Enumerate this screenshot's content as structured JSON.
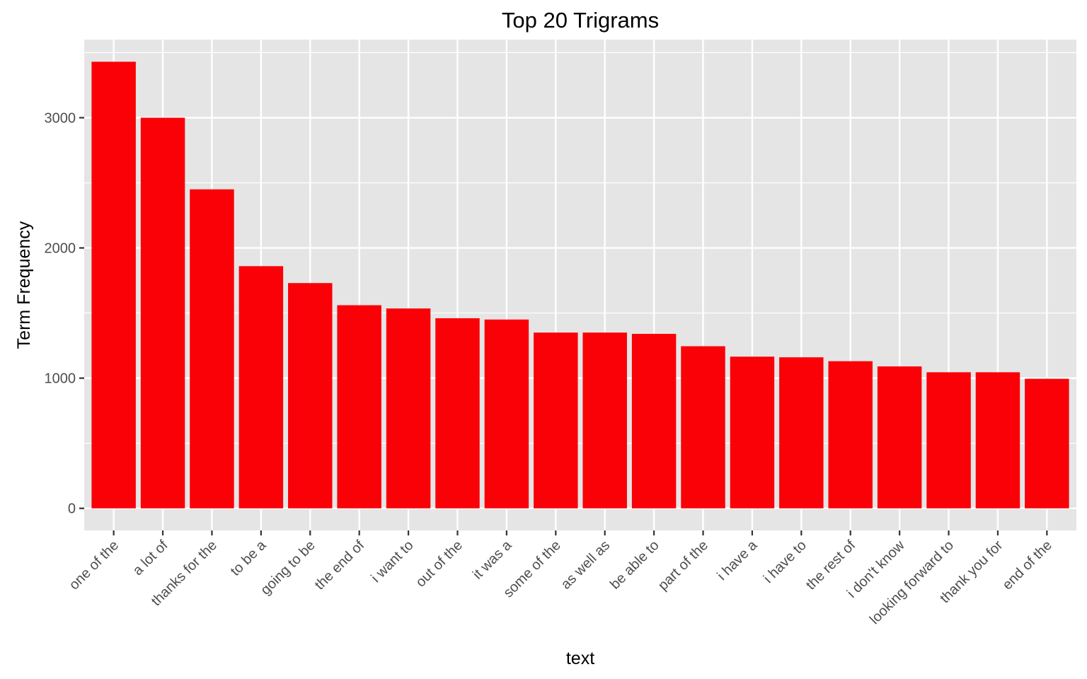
{
  "chart_data": {
    "type": "bar",
    "title": "Top 20 Trigrams",
    "xlabel": "text",
    "ylabel": "Term Frequency",
    "categories": [
      "one of the",
      "a lot of",
      "thanks for the",
      "to be a",
      "going to be",
      "the end of",
      "i want to",
      "out of the",
      "it was a",
      "some of the",
      "as well as",
      "be able to",
      "part of the",
      "i have a",
      "i have to",
      "the rest of",
      "i don't know",
      "looking forward to",
      "thank you for",
      "end of the"
    ],
    "values": [
      3430,
      3000,
      2450,
      1860,
      1730,
      1560,
      1535,
      1460,
      1450,
      1350,
      1350,
      1340,
      1245,
      1165,
      1160,
      1130,
      1090,
      1045,
      1045,
      995
    ],
    "yticks": [
      0,
      1000,
      2000,
      3000
    ],
    "ylim": [
      -170,
      3600
    ],
    "bar_color": "#fa0007",
    "panel_background": "#e5e5e5",
    "grid": true,
    "legend": "none"
  }
}
